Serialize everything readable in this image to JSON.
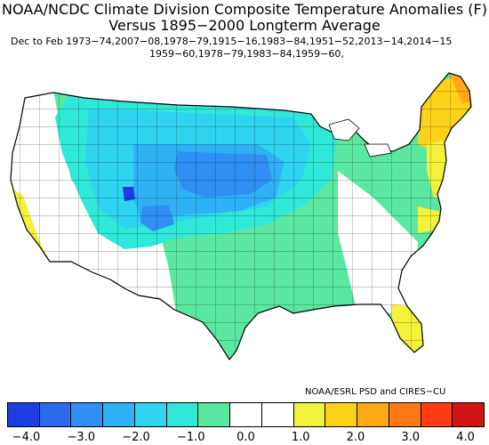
{
  "title_line1": "NOAA/NCDC Climate Division Composite Temperature Anomalies (F)",
  "title_line2": "Versus 1895−2000 Longterm Average",
  "subtitle_line1": "Dec to Feb  1973−74,2007−08,1978−79,1915−16,1983−84,1951−52,2013−14,2014−15",
  "subtitle_line2": "1959−60,1978−79,1983−84,1959−60,",
  "credit": "NOAA/ESRL PSD and CIRES−CU",
  "colorbar": {
    "colors": [
      "#1c3de0",
      "#2a6bf0",
      "#2f8ff5",
      "#2fb2f5",
      "#2fd4f0",
      "#2fe8d8",
      "#5ae8a0",
      "#ffffff",
      "#ffffff",
      "#f2f23a",
      "#ffd21a",
      "#ffaa14",
      "#ff7a14",
      "#ff3c14",
      "#d21414"
    ],
    "ticks": [
      {
        "label": "−4.0",
        "value": -4.0
      },
      {
        "label": "−3.0",
        "value": -3.0
      },
      {
        "label": "−2.0",
        "value": -2.0
      },
      {
        "label": "−1.0",
        "value": -1.0
      },
      {
        "label": "0.0",
        "value": 0.0
      },
      {
        "label": "1.0",
        "value": 1.0
      },
      {
        "label": "2.0",
        "value": 2.0
      },
      {
        "label": "3.0",
        "value": 3.0
      },
      {
        "label": "4.0",
        "value": 4.0
      }
    ]
  }
}
